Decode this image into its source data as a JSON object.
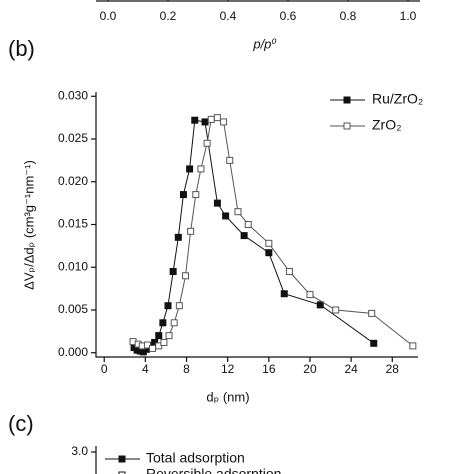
{
  "chart_data": [
    {
      "type": "axis-strip",
      "xlabel": "p/p⁰",
      "xlim": [
        -0.04,
        1.04
      ],
      "xticks": [
        {
          "value": 0,
          "label": "0.0"
        },
        {
          "value": 0.2,
          "label": "0.2"
        },
        {
          "value": 0.4,
          "label": "0.4"
        },
        {
          "value": 0.6,
          "label": "0.6"
        },
        {
          "value": 0.8,
          "label": "0.8"
        },
        {
          "value": 1,
          "label": "1.0"
        }
      ]
    },
    {
      "type": "line",
      "panel_label": "(b)",
      "xlabel": "dₚ (nm)",
      "ylabel": "ΔVₚ/Δdₚ (cm³g⁻¹nm⁻¹)",
      "xlim": [
        -0.8,
        30.5
      ],
      "xticks": [
        0,
        4,
        8,
        12,
        16,
        20,
        24,
        28
      ],
      "ylim": [
        -0.0005,
        0.0305
      ],
      "yticks": [
        {
          "value": 0,
          "label": "0.000"
        },
        {
          "value": 0.005,
          "label": "0.005"
        },
        {
          "value": 0.01,
          "label": "0.010"
        },
        {
          "value": 0.015,
          "label": "0.015"
        },
        {
          "value": 0.02,
          "label": "0.020"
        },
        {
          "value": 0.025,
          "label": "0.025"
        },
        {
          "value": 0.03,
          "label": "0.030"
        }
      ],
      "legend": "upper right",
      "series": [
        {
          "name": "Ru/ZrO₂",
          "color": "#111111",
          "marker": "filled-square",
          "x": [
            2.9,
            3.2,
            3.5,
            3.8,
            4.1,
            4.5,
            4.9,
            5.3,
            5.7,
            6.2,
            6.7,
            7.2,
            7.7,
            8.3,
            8.8,
            9.8,
            11,
            11.8,
            13.6,
            16,
            17.5,
            21,
            26.2
          ],
          "values": [
            0.0006,
            0.0003,
            0.0002,
            0.0001,
            0.0004,
            0.0008,
            0.0012,
            0.002,
            0.0035,
            0.0055,
            0.0095,
            0.0135,
            0.0185,
            0.0215,
            0.0272,
            0.027,
            0.0175,
            0.016,
            0.0137,
            0.0117,
            0.0069,
            0.0056,
            0.0011
          ]
        },
        {
          "name": "ZrO₂",
          "color": "#555555",
          "marker": "open-square",
          "x": [
            2.8,
            3.3,
            3.7,
            4.2,
            4.7,
            5.3,
            5.8,
            6.3,
            6.8,
            7.3,
            7.9,
            8.4,
            8.9,
            9.4,
            10,
            10.4,
            11,
            11.6,
            12.2,
            13,
            14,
            16,
            18,
            20,
            22.5,
            26,
            30
          ],
          "values": [
            0.0013,
            0.001,
            0.0008,
            0.0009,
            0.0005,
            0.0008,
            0.0012,
            0.002,
            0.0035,
            0.0055,
            0.009,
            0.0142,
            0.0185,
            0.0215,
            0.0245,
            0.0273,
            0.0275,
            0.027,
            0.0225,
            0.0165,
            0.015,
            0.0128,
            0.0095,
            0.0068,
            0.005,
            0.0046,
            0.0008
          ]
        }
      ]
    },
    {
      "type": "legend-strip",
      "panel_label": "(c)",
      "yticks": [
        {
          "value": 3,
          "label": "3.0"
        }
      ],
      "series": [
        {
          "name": "Total adsorption",
          "color": "#111111",
          "marker": "filled-square"
        },
        {
          "name": "Reversible adsorption",
          "color": "#111111",
          "marker": "open-square"
        }
      ]
    }
  ]
}
